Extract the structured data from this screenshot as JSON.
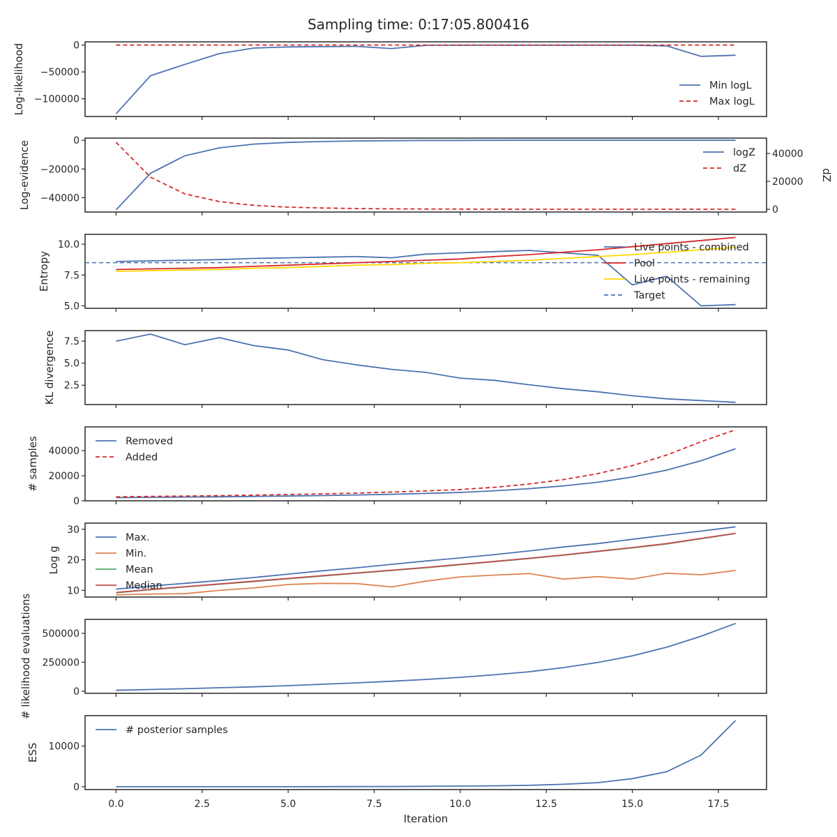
{
  "figure": {
    "title": "Sampling time: 0:17:05.800416"
  },
  "chart_data": [
    {
      "type": "line",
      "ylabel": "Log-likelihood",
      "ylim": [
        -133000,
        6000
      ],
      "yticks": [
        0,
        -50000,
        -100000
      ],
      "yticklabels": [
        "0",
        "−50000",
        "−100000"
      ],
      "legend": "lower-right",
      "x": [
        0,
        1,
        2,
        3,
        4,
        5,
        6,
        7,
        8,
        9,
        10,
        11,
        12,
        13,
        14,
        15,
        16,
        17,
        18
      ],
      "series": [
        {
          "name": "Min logL",
          "color": "#4c72b0",
          "dash": "solid",
          "values": [
            -128000,
            -57000,
            -36000,
            -16000,
            -5500,
            -3500,
            -3000,
            -2500,
            -6500,
            -500,
            -300,
            -200,
            -200,
            -200,
            -200,
            -200,
            -1500,
            -21000,
            -19000
          ]
        },
        {
          "name": "Max logL",
          "color": "#d62728",
          "dash": "dashed",
          "values": [
            0,
            0,
            0,
            0,
            0,
            0,
            0,
            0,
            0,
            0,
            0,
            0,
            0,
            0,
            0,
            0,
            0,
            0,
            0
          ]
        }
      ]
    },
    {
      "type": "line",
      "ylabel": "Log-evidence",
      "ylabel_right": "dZ",
      "ylim": [
        -50000,
        1500
      ],
      "ylim_right": [
        -2000,
        51000
      ],
      "yticks": [
        0,
        -20000,
        -40000
      ],
      "yticklabels": [
        "0",
        "−20000",
        "−40000"
      ],
      "yticks_right": [
        40000,
        20000,
        0
      ],
      "yticklabels_right": [
        "40000",
        "20000",
        "0"
      ],
      "legend": "top-right",
      "x": [
        0,
        1,
        2,
        3,
        4,
        5,
        6,
        7,
        8,
        9,
        10,
        11,
        12,
        13,
        14,
        15,
        16,
        17,
        18
      ],
      "series": [
        {
          "name": "logZ",
          "color": "#4c72b0",
          "dash": "solid",
          "axis": "left",
          "values": [
            -48500,
            -23000,
            -10800,
            -5300,
            -2700,
            -1500,
            -900,
            -500,
            -300,
            -150,
            -80,
            -40,
            -20,
            -10,
            -5,
            -3,
            -2,
            -1,
            0
          ]
        },
        {
          "name": "dZ",
          "color": "#d62728",
          "dash": "dashed",
          "axis": "right",
          "values": [
            48000,
            23000,
            11000,
            5500,
            2800,
            1500,
            900,
            500,
            300,
            150,
            80,
            40,
            20,
            10,
            5,
            3,
            2,
            1,
            0
          ]
        }
      ]
    },
    {
      "type": "line",
      "ylabel": "Entropy",
      "ylim": [
        4.8,
        10.8
      ],
      "yticks": [
        10.0,
        7.5,
        5.0
      ],
      "yticklabels": [
        "10.0",
        "7.5",
        "5.0"
      ],
      "legend": "top-right",
      "hline": {
        "name": "Target",
        "value": 8.5,
        "color": "#4c72b0"
      },
      "x": [
        0,
        1,
        2,
        3,
        4,
        5,
        6,
        7,
        8,
        9,
        10,
        11,
        12,
        13,
        14,
        15,
        16,
        17,
        18
      ],
      "series": [
        {
          "name": "Live points - combined",
          "color": "#4c72b0",
          "dash": "solid",
          "values": [
            8.6,
            8.65,
            8.7,
            8.75,
            8.85,
            8.9,
            8.95,
            9.0,
            8.9,
            9.2,
            9.3,
            9.4,
            9.5,
            9.3,
            9.1,
            6.7,
            7.4,
            5.0,
            5.1
          ]
        },
        {
          "name": "Pool",
          "color": "#d62728",
          "dash": "solid",
          "values": [
            7.95,
            8.0,
            8.05,
            8.1,
            8.2,
            8.3,
            8.4,
            8.5,
            8.6,
            8.7,
            8.8,
            9.0,
            9.15,
            9.35,
            9.55,
            9.8,
            10.05,
            10.3,
            10.55
          ]
        },
        {
          "name": "Live points - remaining",
          "color": "#ffd700",
          "dash": "solid",
          "values": [
            7.8,
            7.85,
            7.9,
            7.95,
            8.05,
            8.1,
            8.2,
            8.3,
            8.35,
            8.45,
            8.5,
            8.6,
            8.7,
            8.85,
            9.0,
            9.15,
            9.35,
            9.55,
            9.75
          ]
        }
      ],
      "legend_entries": [
        "Live points - combined",
        "Pool",
        "Live points - remaining",
        "Target"
      ]
    },
    {
      "type": "line",
      "ylabel": "KL divergence",
      "ylim": [
        0.3,
        8.7
      ],
      "yticks": [
        7.5,
        5.0,
        2.5
      ],
      "yticklabels": [
        "7.5",
        "5.0",
        "2.5"
      ],
      "x": [
        0,
        1,
        2,
        3,
        4,
        5,
        6,
        7,
        8,
        9,
        10,
        11,
        12,
        13,
        14,
        15,
        16,
        17,
        18
      ],
      "series": [
        {
          "name": "",
          "color": "#4c72b0",
          "dash": "solid",
          "values": [
            7.5,
            8.3,
            7.1,
            7.9,
            7.0,
            6.5,
            5.4,
            4.8,
            4.3,
            3.95,
            3.3,
            3.05,
            2.55,
            2.1,
            1.75,
            1.3,
            0.95,
            0.75,
            0.55
          ]
        }
      ]
    },
    {
      "type": "line",
      "ylabel": "# samples",
      "ylim": [
        0,
        59000
      ],
      "yticks": [
        40000,
        20000,
        0
      ],
      "yticklabels": [
        "40000",
        "20000",
        "0"
      ],
      "legend": "top-left",
      "x": [
        0,
        1,
        2,
        3,
        4,
        5,
        6,
        7,
        8,
        9,
        10,
        11,
        12,
        13,
        14,
        15,
        16,
        17,
        18
      ],
      "series": [
        {
          "name": "Removed",
          "color": "#4c72b0",
          "dash": "solid",
          "values": [
            2500,
            2800,
            3000,
            3200,
            3500,
            3800,
            4200,
            4700,
            5200,
            5900,
            6700,
            8000,
            9700,
            11900,
            14800,
            19000,
            24500,
            32000,
            41500
          ]
        },
        {
          "name": "Added",
          "color": "#d62728",
          "dash": "dashed",
          "values": [
            3200,
            3500,
            3800,
            4100,
            4500,
            5000,
            5500,
            6200,
            7000,
            7900,
            9000,
            10800,
            13400,
            16900,
            21700,
            28100,
            36500,
            47200,
            56700
          ]
        }
      ]
    },
    {
      "type": "line",
      "ylabel": "Log g",
      "ylim": [
        7.8,
        32
      ],
      "yticks": [
        30,
        20,
        10
      ],
      "yticklabels": [
        "30",
        "20",
        "10"
      ],
      "legend": "top-left",
      "x": [
        0,
        1,
        2,
        3,
        4,
        5,
        6,
        7,
        8,
        9,
        10,
        11,
        12,
        13,
        14,
        15,
        16,
        17,
        18
      ],
      "series": [
        {
          "name": "Max.",
          "color": "#4c72b0",
          "dash": "solid",
          "values": [
            10.4,
            11.4,
            12.3,
            13.2,
            14.2,
            15.3,
            16.4,
            17.4,
            18.5,
            19.6,
            20.6,
            21.7,
            22.9,
            24.2,
            25.3,
            26.7,
            28.1,
            29.4,
            30.8
          ]
        },
        {
          "name": "Min.",
          "color": "#dd8452",
          "dash": "solid",
          "values": [
            8.5,
            8.8,
            8.9,
            10.0,
            10.8,
            11.9,
            12.3,
            12.2,
            11.1,
            13.0,
            14.4,
            15.0,
            15.5,
            13.7,
            14.5,
            13.7,
            15.6,
            15.1,
            16.5
          ]
        },
        {
          "name": "Mean",
          "color": "#55a868",
          "dash": "solid",
          "values": [
            9.2,
            10.2,
            11.1,
            12.0,
            12.9,
            13.8,
            14.7,
            15.6,
            16.5,
            17.4,
            18.4,
            19.4,
            20.4,
            21.5,
            22.7,
            23.9,
            25.2,
            26.9,
            28.6
          ]
        },
        {
          "name": "Median",
          "color": "#c44e52",
          "dash": "solid",
          "values": [
            9.3,
            10.3,
            11.2,
            12.1,
            13.0,
            13.9,
            14.8,
            15.7,
            16.6,
            17.5,
            18.5,
            19.5,
            20.5,
            21.6,
            22.8,
            24.0,
            25.3,
            27.0,
            28.7
          ]
        }
      ]
    },
    {
      "type": "line",
      "ylabel": "# likelihood evaluations",
      "ylim": [
        -18000,
        620000
      ],
      "yticks": [
        500000,
        250000,
        0
      ],
      "yticklabels": [
        "500000",
        "250000",
        "0"
      ],
      "x": [
        0,
        1,
        2,
        3,
        4,
        5,
        6,
        7,
        8,
        9,
        10,
        11,
        12,
        13,
        14,
        15,
        16,
        17,
        18
      ],
      "series": [
        {
          "name": "",
          "color": "#4c72b0",
          "dash": "solid",
          "values": [
            8000,
            15000,
            22000,
            30000,
            38000,
            48000,
            60000,
            72000,
            86000,
            102000,
            120000,
            142000,
            168000,
            204000,
            248000,
            305000,
            380000,
            475000,
            585000
          ]
        }
      ]
    },
    {
      "type": "line",
      "ylabel": "ESS",
      "xlabel": "Iteration",
      "ylim": [
        -700,
        17500
      ],
      "yticks": [
        10000,
        0
      ],
      "yticklabels": [
        "10000",
        "0"
      ],
      "xlim": [
        -0.9,
        18.9
      ],
      "xticks": [
        0.0,
        2.5,
        5.0,
        7.5,
        10.0,
        12.5,
        15.0,
        17.5
      ],
      "xticklabels": [
        "0.0",
        "2.5",
        "5.0",
        "7.5",
        "10.0",
        "12.5",
        "15.0",
        "17.5"
      ],
      "legend": "top-left",
      "x": [
        0,
        1,
        2,
        3,
        4,
        5,
        6,
        7,
        8,
        9,
        10,
        11,
        12,
        13,
        14,
        15,
        16,
        17,
        18
      ],
      "series": [
        {
          "name": "# posterior samples",
          "color": "#4c72b0",
          "dash": "solid",
          "values": [
            0,
            0,
            0,
            0,
            0,
            10,
            20,
            40,
            60,
            100,
            150,
            220,
            350,
            600,
            1000,
            2000,
            3700,
            7800,
            16300
          ]
        }
      ]
    }
  ]
}
